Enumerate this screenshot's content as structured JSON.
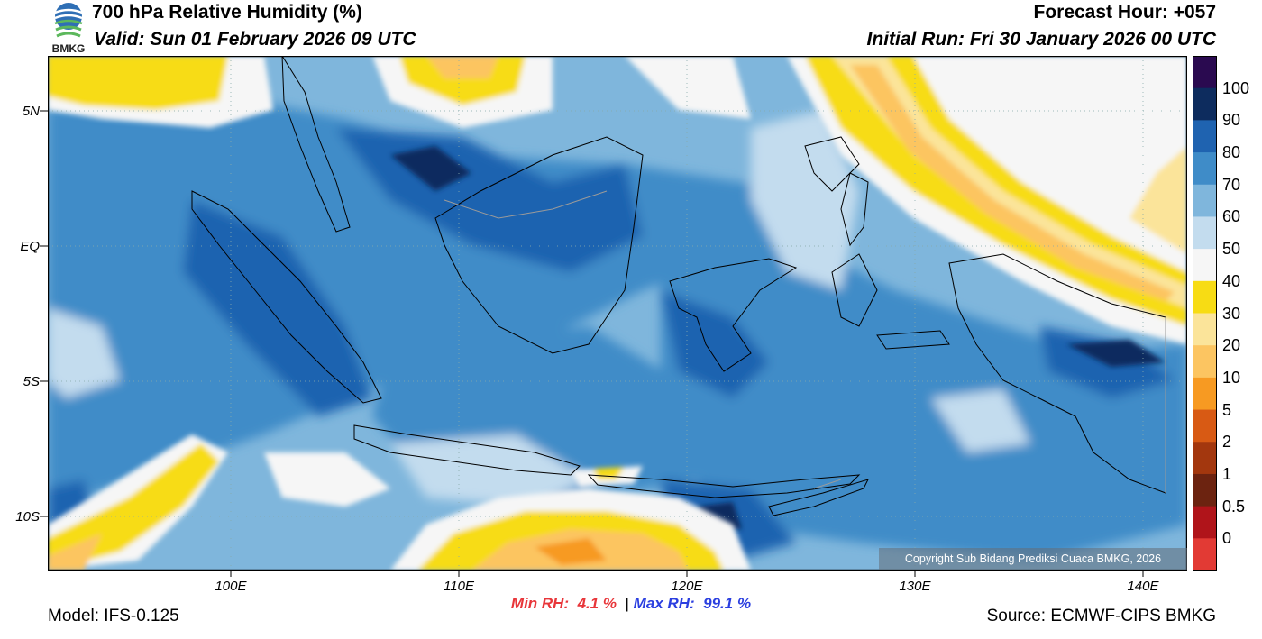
{
  "header": {
    "title": "700 hPa Relative Humidity (%)",
    "valid": "Valid: Sun 01 February 2026 09 UTC",
    "forecast_hour": "Forecast Hour: +057",
    "initial_run": "Initial Run: Fri 30 January 2026 00 UTC",
    "logo_text": "BMKG"
  },
  "axes": {
    "latitude_labels": [
      "5N",
      "EQ",
      "5S",
      "10S"
    ],
    "longitude_labels": [
      "100E",
      "110E",
      "120E",
      "130E",
      "140E"
    ]
  },
  "stats": {
    "min_label": "Min RH:",
    "min_value": "4.1 %",
    "separator": "|",
    "max_label": "Max RH:",
    "max_value": "99.1 %"
  },
  "footer": {
    "model": "Model: IFS-0.125",
    "source": "Source: ECMWF-CIPS BMKG",
    "copyright": "Copyright Sub Bidang Prediksi Cuaca BMKG, 2026"
  },
  "legend": {
    "labels": [
      "100",
      "90",
      "80",
      "70",
      "60",
      "50",
      "40",
      "30",
      "20",
      "10",
      "5",
      "2",
      "1",
      "0.5",
      "0"
    ],
    "colors": [
      "#2a0a50",
      "#0d2c5e",
      "#1f63b0",
      "#3f8cc8",
      "#7fb6dc",
      "#c3dcee",
      "#f6f6f6",
      "#f7dc14",
      "#fbe49a",
      "#fcc561",
      "#f79a22",
      "#d85a14",
      "#a3370e",
      "#6c2310",
      "#b0141a",
      "#e23a34"
    ]
  },
  "map": {
    "colors": {
      "ocean_base": "#7fb6dc",
      "moist": "#3f8cc8",
      "very_moist": "#1f63b0",
      "saturated": "#0d2c5e",
      "mid": "#c3dcee",
      "dry_white": "#f6f6f6",
      "yellow": "#f7dc14",
      "light_orange": "#fbe49a",
      "orange": "#fcc561",
      "deep_orange": "#f79a22",
      "coast": "#000000",
      "border": "#9a9a9a"
    }
  }
}
